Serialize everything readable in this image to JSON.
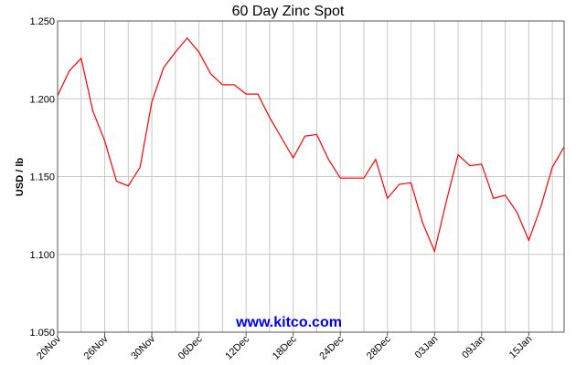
{
  "chart_data": {
    "type": "line",
    "title": "60 Day Zinc Spot",
    "ylabel": "USD / lb",
    "xlabel": "",
    "ylim": [
      1.05,
      1.25
    ],
    "yticks": [
      "1.050",
      "1.100",
      "1.150",
      "1.200",
      "1.250"
    ],
    "x_tick_labels": [
      "20Nov",
      "26Nov",
      "30Nov",
      "06Dec",
      "12Dec",
      "18Dec",
      "24Dec",
      "28Dec",
      "03Jan",
      "09Jan",
      "15Jan"
    ],
    "grid": true,
    "series": [
      {
        "color": "#ff0000",
        "values": [
          1.202,
          1.218,
          1.226,
          1.192,
          1.173,
          1.147,
          1.144,
          1.156,
          1.198,
          1.22,
          1.23,
          1.239,
          1.23,
          1.216,
          1.209,
          1.209,
          1.203,
          1.203,
          1.188,
          1.175,
          1.162,
          1.176,
          1.177,
          1.161,
          1.149,
          1.149,
          1.149,
          1.161,
          1.136,
          1.145,
          1.146,
          1.12,
          1.102,
          1.134,
          1.164,
          1.157,
          1.158,
          1.136,
          1.138,
          1.127,
          1.109,
          1.13,
          1.156,
          1.169
        ]
      }
    ]
  },
  "watermark": {
    "text": "www.kitco.com",
    "color": "#0000ee"
  }
}
